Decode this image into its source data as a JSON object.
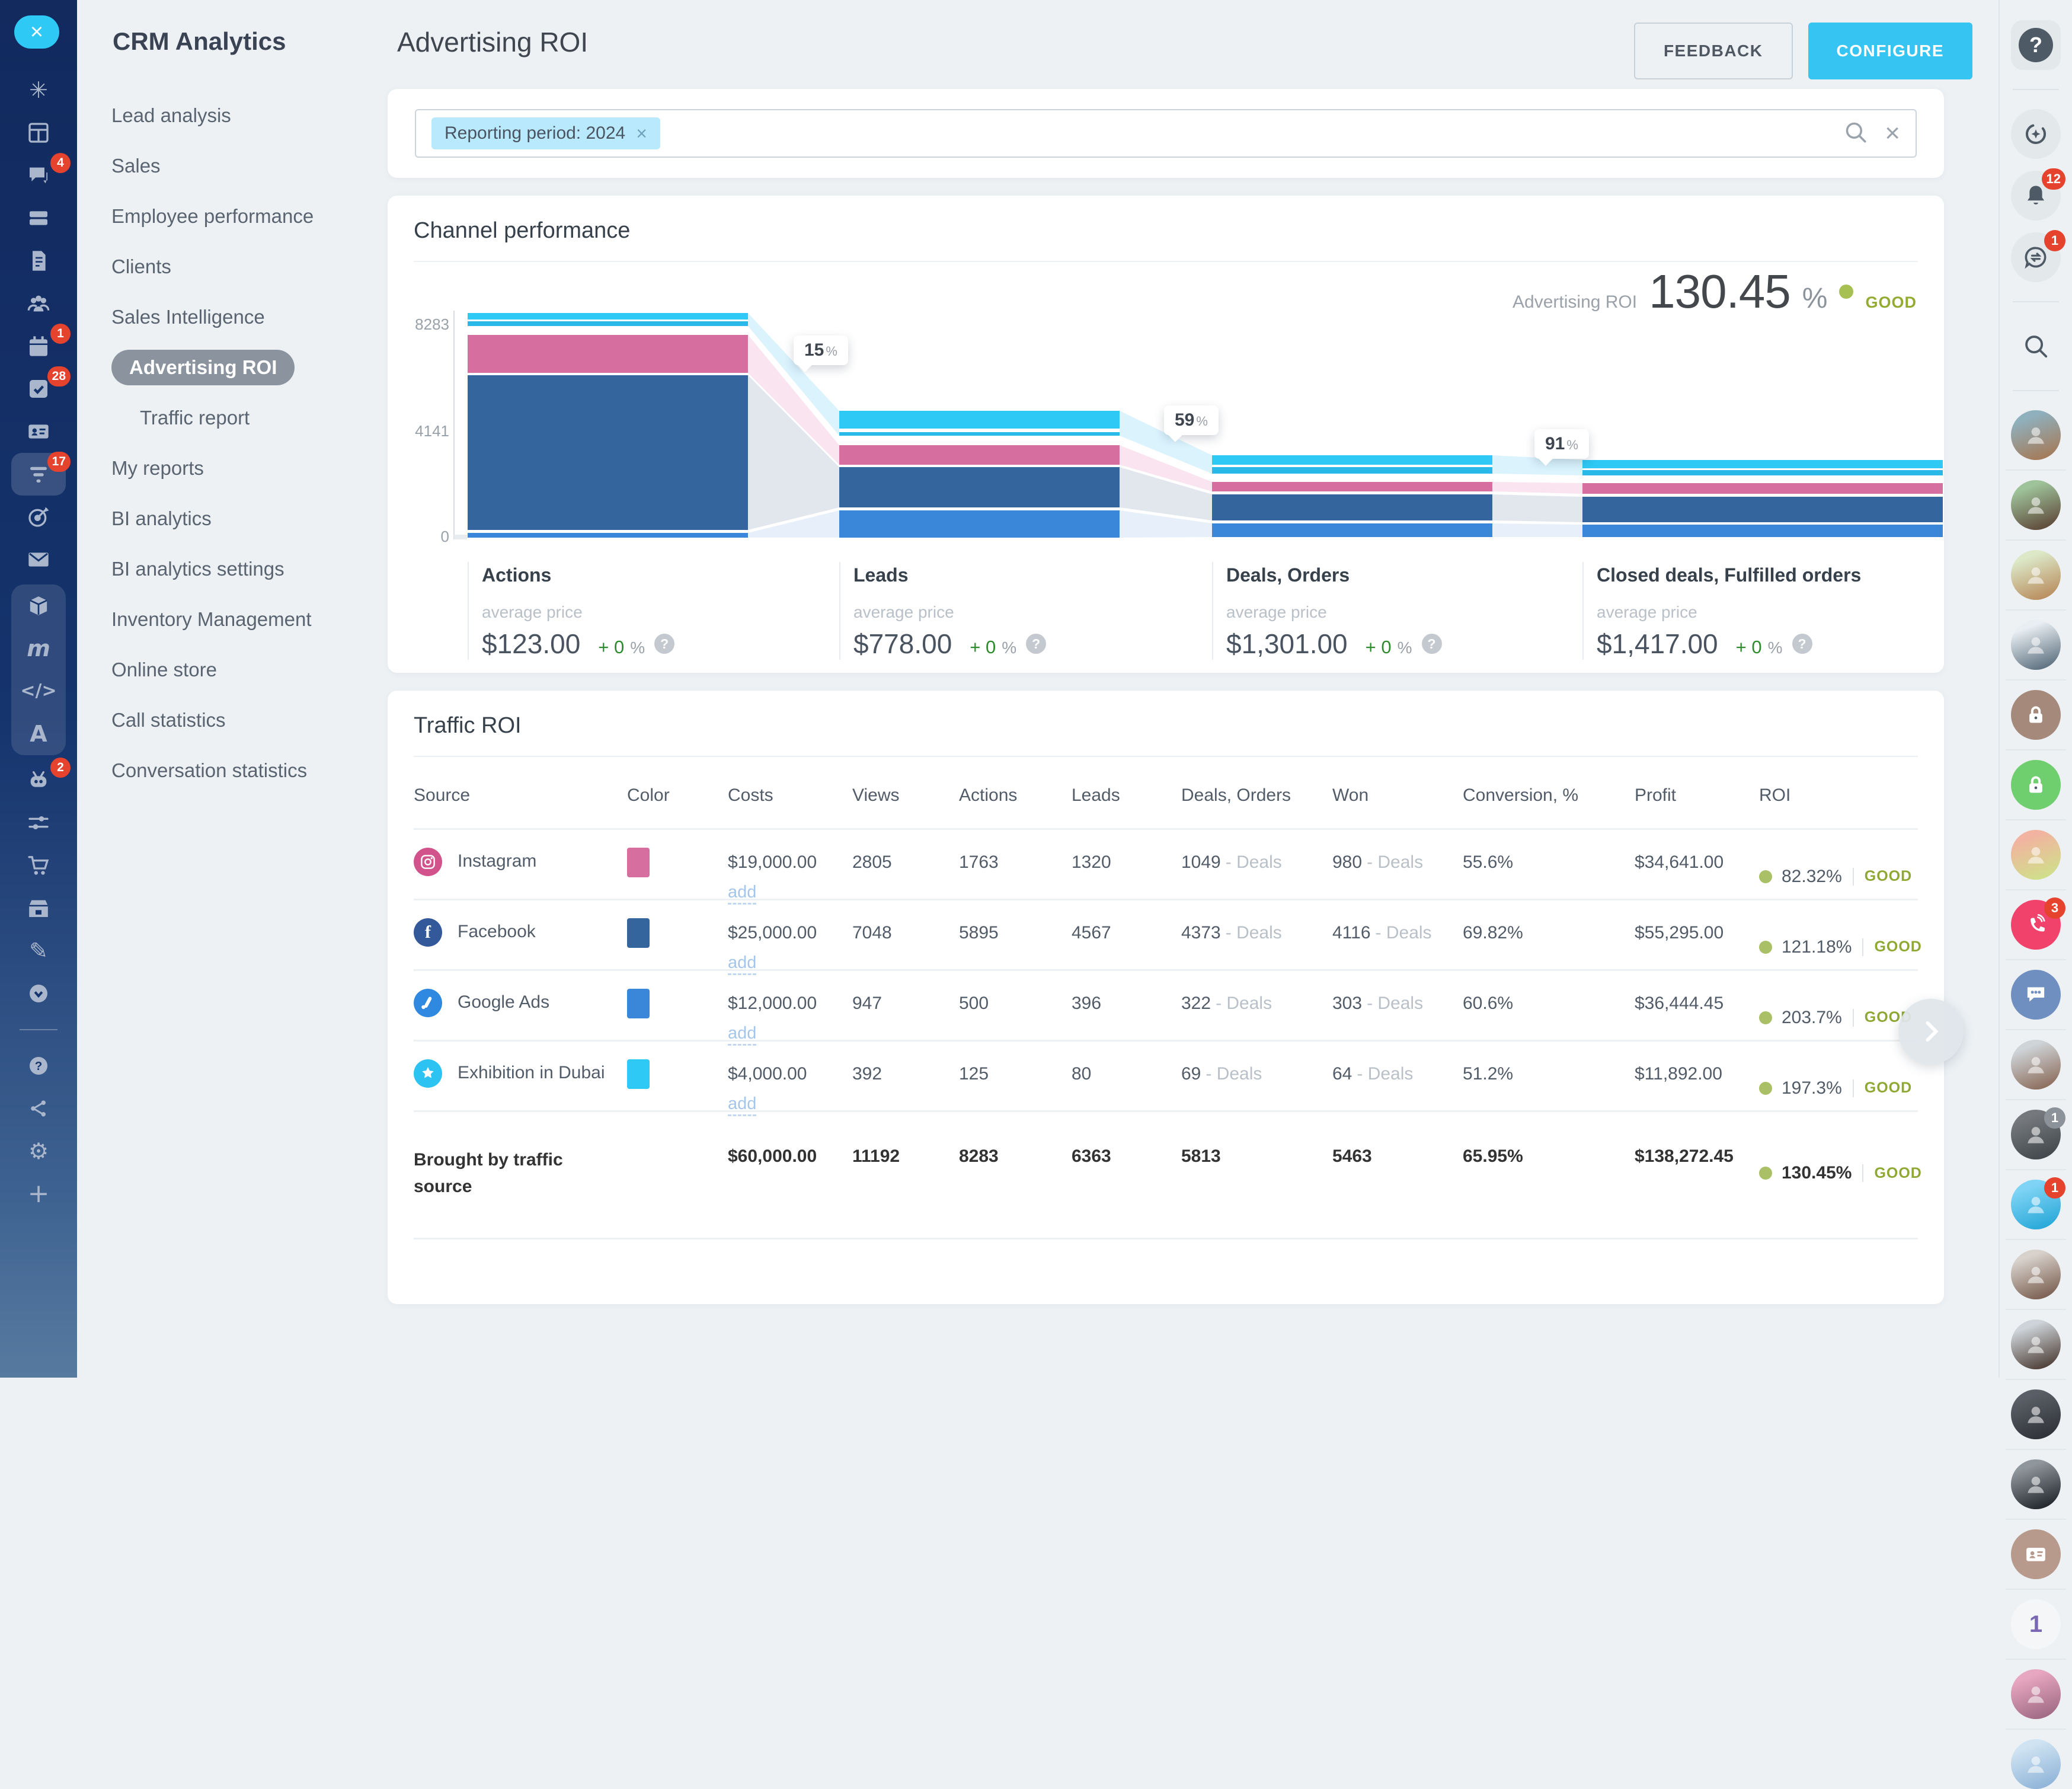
{
  "app_title": "CRM Analytics",
  "left_rail": {
    "close_glyph": "×",
    "items": [
      {
        "id": "processes-icon"
      },
      {
        "id": "kanban-icon"
      },
      {
        "id": "chat-icon",
        "badge": "4"
      },
      {
        "id": "drive-icon"
      },
      {
        "id": "documents-icon"
      },
      {
        "id": "employees-icon"
      },
      {
        "id": "calendar-icon",
        "badge": "1"
      },
      {
        "id": "tasks-icon",
        "badge": "28"
      },
      {
        "id": "contact-card-icon"
      },
      {
        "id": "crm-feed-icon",
        "badge": "17",
        "highlighted": true
      },
      {
        "id": "marketing-target-icon"
      },
      {
        "id": "mail-icon"
      },
      {
        "id": "product-box-icon",
        "grouped": true
      },
      {
        "id": "m-logo-icon",
        "grouped": true
      },
      {
        "id": "developer-code-icon",
        "grouped": true
      },
      {
        "id": "letter-a-icon",
        "grouped": true
      },
      {
        "id": "automation-robot-icon",
        "badge": "2"
      },
      {
        "id": "sliders-icon"
      },
      {
        "id": "shopping-cart-icon"
      },
      {
        "id": "warehouse-icon"
      },
      {
        "id": "sign-document-icon"
      },
      {
        "id": "time-history-icon"
      },
      {
        "id": "divider"
      },
      {
        "id": "support-question-icon"
      },
      {
        "id": "share-icon"
      },
      {
        "id": "settings-gear-icon"
      },
      {
        "id": "add-plus-icon"
      }
    ]
  },
  "sidebar": {
    "title": "CRM Analytics",
    "items": [
      {
        "label": "Lead analysis"
      },
      {
        "label": "Sales"
      },
      {
        "label": "Employee performance"
      },
      {
        "label": "Clients"
      },
      {
        "label": "Sales Intelligence"
      },
      {
        "label": "Advertising ROI",
        "active": true
      },
      {
        "label": "Traffic report",
        "indent": true
      },
      {
        "label": "My reports"
      },
      {
        "label": "BI analytics"
      },
      {
        "label": "BI analytics settings"
      },
      {
        "label": "Inventory Management"
      },
      {
        "label": "Online store"
      },
      {
        "label": "Call statistics"
      },
      {
        "label": "Conversation statistics"
      }
    ]
  },
  "header": {
    "title": "Advertising ROI",
    "feedback_label": "FEEDBACK",
    "configure_label": "CONFIGURE"
  },
  "filter": {
    "chip_label": "Reporting period: 2024",
    "chip_close_glyph": "×",
    "clear_glyph": "×"
  },
  "channel": {
    "title": "Channel performance",
    "kpi_label": "Advertising ROI",
    "kpi_value": "130.45",
    "kpi_unit": "%",
    "kpi_status": "GOOD",
    "y_ticks": [
      "8283",
      "4141",
      "0"
    ],
    "conversions": [
      {
        "value": "15",
        "unit": "%"
      },
      {
        "value": "59",
        "unit": "%"
      },
      {
        "value": "91",
        "unit": "%"
      }
    ],
    "stages": [
      {
        "label": "Actions",
        "sub_label": "average price",
        "avg_value": "$123.00",
        "delta": "+ 0",
        "delta_unit": "%",
        "help_glyph": "?"
      },
      {
        "label": "Leads",
        "sub_label": "average price",
        "avg_value": "$778.00",
        "delta": "+ 0",
        "delta_unit": "%",
        "help_glyph": "?"
      },
      {
        "label": "Deals, Orders",
        "sub_label": "average price",
        "avg_value": "$1,301.00",
        "delta": "+ 0",
        "delta_unit": "%",
        "help_glyph": "?"
      },
      {
        "label": "Closed deals, Fulfilled orders",
        "sub_label": "average price",
        "avg_value": "$1,417.00",
        "delta": "+ 0",
        "delta_unit": "%",
        "help_glyph": "?"
      }
    ]
  },
  "chart_data": {
    "type": "funnel",
    "title": "Channel performance",
    "stages": [
      "Actions",
      "Leads",
      "Deals, Orders",
      "Closed deals, Fulfilled orders"
    ],
    "stage_totals": [
      8283,
      6363,
      5813,
      5463
    ],
    "average_price_per_stage": [
      123.0,
      778.0,
      1301.0,
      1417.0
    ],
    "stage_deltas_percent": [
      0,
      0,
      0,
      0
    ],
    "conversion_labels_between_stages": [
      "15%",
      "59%",
      "91%"
    ],
    "overall_roi_percent": 130.45,
    "overall_status": "GOOD",
    "yaxis_ticks": [
      0,
      4141,
      8283
    ],
    "series": [
      {
        "name": "Instagram",
        "color": "#d66e9f",
        "values": [
          1763,
          1320,
          1049,
          980
        ]
      },
      {
        "name": "Facebook",
        "color": "#34659d",
        "values": [
          5895,
          4567,
          4373,
          4116
        ]
      },
      {
        "name": "Google Ads",
        "color": "#3a86d8",
        "values": [
          500,
          396,
          322,
          303
        ]
      },
      {
        "name": "Exhibition in Dubai",
        "color": "#2ec9f5",
        "values": [
          125,
          80,
          69,
          64
        ]
      }
    ],
    "legend_position": "none",
    "grid": false
  },
  "table": {
    "title": "Traffic ROI",
    "headers": [
      "Source",
      "Color",
      "Costs",
      "Views",
      "Actions",
      "Leads",
      "Deals, Orders",
      "Won",
      "Conversion, %",
      "Profit",
      "ROI"
    ],
    "add_label": "add",
    "deals_suffix": "- Deals",
    "rows": [
      {
        "source": "Instagram",
        "icon": "instagram-icon",
        "icon_bg": "#d2528b",
        "swatch": "#d66e9f",
        "costs": "$19,000.00",
        "views": "2805",
        "actions": "1763",
        "leads": "1320",
        "deals": "1049",
        "won": "980",
        "conversion": "55.6%",
        "profit": "$34,641.00",
        "roi": "82.32%",
        "status": "GOOD"
      },
      {
        "source": "Facebook",
        "icon": "facebook-icon",
        "icon_bg": "#33599b",
        "swatch": "#34659d",
        "costs": "$25,000.00",
        "views": "7048",
        "actions": "5895",
        "leads": "4567",
        "deals": "4373",
        "won": "4116",
        "conversion": "69.82%",
        "profit": "$55,295.00",
        "roi": "121.18%",
        "status": "GOOD"
      },
      {
        "source": "Google Ads",
        "icon": "google-ads-icon",
        "icon_bg": "#3089e0",
        "swatch": "#3a86d8",
        "costs": "$12,000.00",
        "views": "947",
        "actions": "500",
        "leads": "396",
        "deals": "322",
        "won": "303",
        "conversion": "60.6%",
        "profit": "$36,444.45",
        "roi": "203.7%",
        "status": "GOOD"
      },
      {
        "source": "Exhibition in Dubai",
        "icon": "star-icon",
        "icon_bg": "#2cc3f2",
        "swatch": "#2ec9f5",
        "costs": "$4,000.00",
        "views": "392",
        "actions": "125",
        "leads": "80",
        "deals": "69",
        "won": "64",
        "conversion": "51.2%",
        "profit": "$11,892.00",
        "roi": "197.3%",
        "status": "GOOD"
      }
    ],
    "totals": {
      "label": "Brought by traffic source",
      "costs": "$60,000.00",
      "views": "11192",
      "actions": "8283",
      "leads": "6363",
      "deals": "5813",
      "won": "5463",
      "conversion": "65.95%",
      "profit": "$138,272.45",
      "roi": "130.45%",
      "status": "GOOD"
    }
  },
  "right_rail": {
    "items": [
      {
        "type": "button",
        "id": "help-icon"
      },
      {
        "type": "divider"
      },
      {
        "type": "button",
        "id": "copilot-icon"
      },
      {
        "type": "button",
        "id": "notifications-bell-icon",
        "badge": "12"
      },
      {
        "type": "button",
        "id": "history-chat-icon",
        "badge": "1"
      },
      {
        "type": "divider"
      },
      {
        "type": "button",
        "id": "search-icon",
        "plain": true
      },
      {
        "type": "divider"
      },
      {
        "type": "avatar",
        "id": "avatar-1",
        "c1": "#8fb0bd",
        "c2": "#a57a58"
      },
      {
        "type": "avatar",
        "id": "avatar-2",
        "c1": "#9ec29a",
        "c2": "#5f4a3a"
      },
      {
        "type": "avatar",
        "id": "avatar-3",
        "c1": "#dce8c8",
        "c2": "#b98d5e"
      },
      {
        "type": "avatar",
        "id": "avatar-4",
        "c1": "#e8eef2",
        "c2": "#5d707f"
      },
      {
        "type": "avatar",
        "id": "avatar-5",
        "bg": "#a58a7b",
        "icon": "lock-icon"
      },
      {
        "type": "avatar",
        "id": "avatar-6",
        "bg": "#6fcf6f",
        "icon": "lock-icon"
      },
      {
        "type": "avatar",
        "id": "avatar-7",
        "c1": "#f2b3a0",
        "c2": "#cfe08a"
      },
      {
        "type": "avatar",
        "id": "avatar-8",
        "bg": "#f1426b",
        "icon": "phone-icon",
        "badge": "3"
      },
      {
        "type": "avatar",
        "id": "avatar-9",
        "bg": "#6f8fc0",
        "icon": "chat-group-icon"
      },
      {
        "type": "avatar",
        "id": "avatar-10",
        "c1": "#cfd4d8",
        "c2": "#8c6d5c"
      },
      {
        "type": "avatar",
        "id": "avatar-11",
        "c1": "#75797d",
        "c2": "#43484d",
        "badge": "1",
        "badge_color": "#8b9299"
      },
      {
        "type": "avatar",
        "id": "avatar-12",
        "c1": "#7fd4f5",
        "c2": "#28a8d8",
        "badge": "1"
      },
      {
        "type": "avatar",
        "id": "avatar-13",
        "c1": "#d8d2cc",
        "c2": "#7b5f51"
      },
      {
        "type": "avatar",
        "id": "avatar-14",
        "c1": "#cdd3d8",
        "c2": "#4f4038"
      },
      {
        "type": "avatar",
        "id": "avatar-15",
        "c1": "#5a5e66",
        "c2": "#2f3338"
      },
      {
        "type": "avatar",
        "id": "avatar-16",
        "c1": "#8f969c",
        "c2": "#23272c"
      },
      {
        "type": "avatar",
        "id": "avatar-17",
        "bg": "#b79a8b",
        "icon": "id-card-icon"
      },
      {
        "type": "avatar",
        "id": "avatar-18",
        "bg": "#f4f6f8",
        "glyph": "1",
        "glyph_color": "#7b68b5"
      },
      {
        "type": "avatar",
        "id": "avatar-19",
        "c1": "#e8a7c0",
        "c2": "#a06a84"
      },
      {
        "type": "avatar",
        "id": "avatar-20",
        "c1": "#cfe3f2",
        "c2": "#8fb4d8"
      }
    ]
  },
  "colors": {
    "accent": "#2ec9f5",
    "primary_button": "#36c4f2",
    "good_status": "#8fa833",
    "good_dot": "#a9c066",
    "positive_delta": "#2e8b2e",
    "instagram": "#d66e9f",
    "facebook": "#34659d",
    "google_ads": "#3a86d8",
    "exhibition": "#2ec9f5",
    "sidebar_top": "#122a5e",
    "sidebar_bottom": "#567a9f"
  }
}
